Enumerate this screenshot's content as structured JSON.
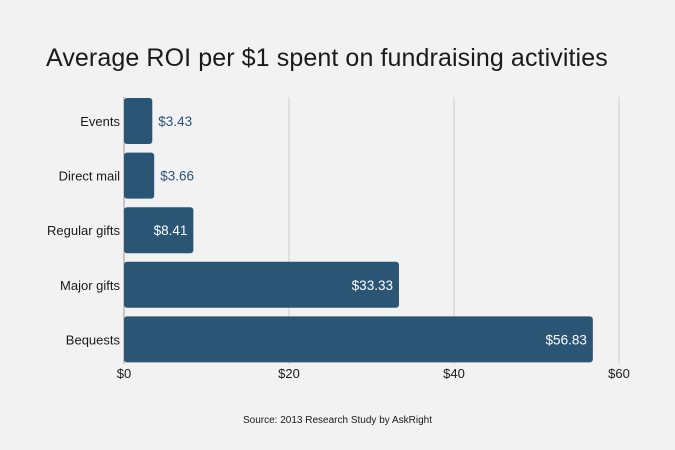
{
  "chart_data": {
    "type": "bar",
    "orientation": "horizontal",
    "title": "Average ROI per $1 spent on fundraising activities",
    "categories": [
      "Events",
      "Direct mail",
      "Regular gifts",
      "Major gifts",
      "Bequests"
    ],
    "values": [
      3.43,
      3.66,
      8.41,
      33.33,
      56.83
    ],
    "value_labels": [
      "$3.43",
      "$3.66",
      "$8.41",
      "$33.33",
      "$56.83"
    ],
    "xlim": [
      0,
      60
    ],
    "x_ticks": [
      0,
      20,
      40,
      60
    ],
    "x_tick_labels": [
      "$0",
      "$20",
      "$40",
      "$60"
    ],
    "xlabel": "",
    "ylabel": "",
    "grid": "vertical",
    "colors": {
      "bar": "#2b5575",
      "label_outside": "#2b5575",
      "label_inside": "#ffffff",
      "grid": "#cfcfcf",
      "background": "#f2f2f2"
    }
  },
  "source": "Source: 2013 Research Study by AskRight"
}
